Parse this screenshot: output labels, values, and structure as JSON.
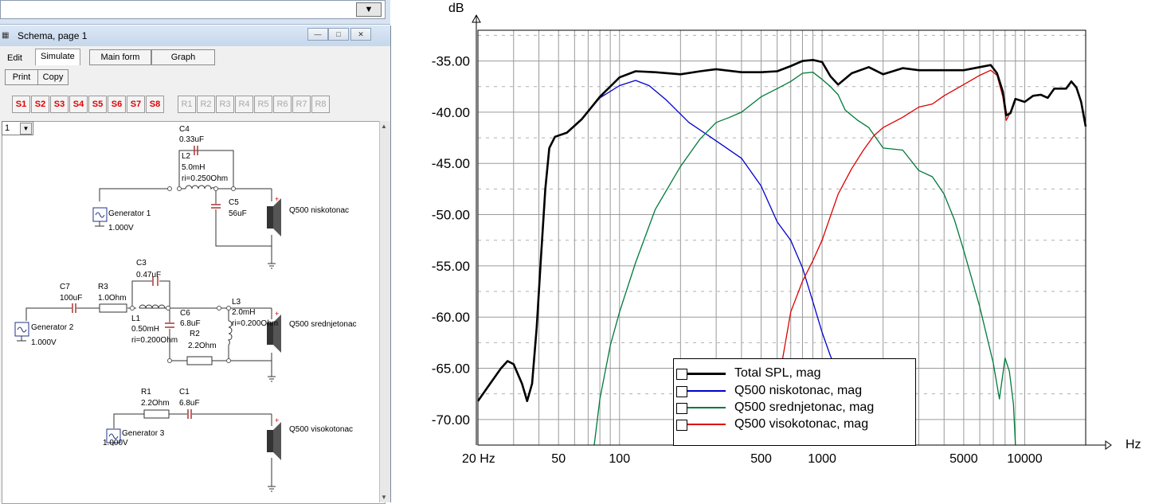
{
  "window": {
    "title": "Schema, page 1",
    "minimize_glyph": "—",
    "maximize_glyph": "□",
    "close_glyph": "✕"
  },
  "menu": {
    "tabs": [
      "Edit",
      "Simulate"
    ],
    "buttons": [
      "Main form",
      "Graph"
    ]
  },
  "toolbar": {
    "print_label": "Print",
    "copy_label": "Copy",
    "s_buttons": [
      "S1",
      "S2",
      "S3",
      "S4",
      "S5",
      "S6",
      "S7",
      "S8"
    ],
    "r_buttons": [
      "R1",
      "R2",
      "R3",
      "R4",
      "R5",
      "R6",
      "R7",
      "R8"
    ]
  },
  "page_select": {
    "value": "1"
  },
  "schematic": {
    "c4": {
      "name": "C4",
      "value": "0.33uF"
    },
    "l2": {
      "name": "L2",
      "value": "5.0mH",
      "ri": "ri=0.250Ohm"
    },
    "c5": {
      "name": "C5",
      "value": "56uF"
    },
    "gen1": {
      "name": "Generator 1",
      "voltage": "1.000V"
    },
    "spk1": "Q500 niskotonac",
    "c3": {
      "name": "C3",
      "value": "0.47uF"
    },
    "c7": {
      "name": "C7",
      "value": "100uF"
    },
    "r3": {
      "name": "R3",
      "value": "1.0Ohm"
    },
    "l1": {
      "name": "L1",
      "value": "0.50mH",
      "ri": "ri=0.200Ohm"
    },
    "c6": {
      "name": "C6",
      "value": "6.8uF"
    },
    "r2": {
      "name": "R2",
      "value": "2.2Ohm"
    },
    "l3": {
      "name": "L3",
      "value": "2.0mH",
      "ri": "ri=0.200Ohm"
    },
    "gen2": {
      "name": "Generator 2",
      "voltage": "1.000V"
    },
    "spk2": "Q500 srednjetonac",
    "r1": {
      "name": "R1",
      "value": "2.2Ohm"
    },
    "c1": {
      "name": "C1",
      "value": "6.8uF"
    },
    "gen3": {
      "name": "Generator 3",
      "voltage": "1.000V"
    },
    "spk3": "Q500 visokotonac"
  },
  "chart_data": {
    "type": "line",
    "ylabel": "dB",
    "xlabel": "Hz",
    "x_scale": "log",
    "xlim": [
      20,
      20000
    ],
    "ylim": [
      -72.5,
      -32
    ],
    "y_ticks": [
      "-35.00",
      "-40.00",
      "-45.00",
      "-50.00",
      "-55.00",
      "-60.00",
      "-65.00",
      "-70.00"
    ],
    "x_ticks": [
      "20 Hz",
      "50",
      "100",
      "500",
      "1000",
      "5000",
      "10000"
    ],
    "grid": true,
    "legend_position": "bottom-center",
    "series": [
      {
        "name": "Total SPL, mag",
        "color": "#000000",
        "points": [
          [
            20,
            -68.2
          ],
          [
            23,
            -66.5
          ],
          [
            26,
            -65.0
          ],
          [
            28,
            -64.3
          ],
          [
            30,
            -64.6
          ],
          [
            33,
            -66.5
          ],
          [
            35,
            -68.2
          ],
          [
            37,
            -66.5
          ],
          [
            39,
            -61
          ],
          [
            41,
            -54
          ],
          [
            43,
            -47.5
          ],
          [
            45,
            -43.5
          ],
          [
            48,
            -42.4
          ],
          [
            55,
            -42.0
          ],
          [
            65,
            -40.7
          ],
          [
            80,
            -38.5
          ],
          [
            100,
            -36.6
          ],
          [
            120,
            -36.0
          ],
          [
            150,
            -36.1
          ],
          [
            200,
            -36.3
          ],
          [
            250,
            -36.0
          ],
          [
            300,
            -35.8
          ],
          [
            400,
            -36.1
          ],
          [
            500,
            -36.1
          ],
          [
            600,
            -36.0
          ],
          [
            700,
            -35.5
          ],
          [
            800,
            -35.0
          ],
          [
            900,
            -34.9
          ],
          [
            1000,
            -35.1
          ],
          [
            1100,
            -36.5
          ],
          [
            1200,
            -37.3
          ],
          [
            1400,
            -36.2
          ],
          [
            1700,
            -35.6
          ],
          [
            2000,
            -36.3
          ],
          [
            2500,
            -35.7
          ],
          [
            3000,
            -35.9
          ],
          [
            4000,
            -35.9
          ],
          [
            5000,
            -35.9
          ],
          [
            6000,
            -35.6
          ],
          [
            6800,
            -35.4
          ],
          [
            7300,
            -36.2
          ],
          [
            7800,
            -38.0
          ],
          [
            8100,
            -40.3
          ],
          [
            8500,
            -40.1
          ],
          [
            9000,
            -38.7
          ],
          [
            10000,
            -39.0
          ],
          [
            11000,
            -38.4
          ],
          [
            12000,
            -38.3
          ],
          [
            13000,
            -38.6
          ],
          [
            14000,
            -37.7
          ],
          [
            15000,
            -37.7
          ],
          [
            16000,
            -37.7
          ],
          [
            17000,
            -37.0
          ],
          [
            18000,
            -37.6
          ],
          [
            19000,
            -39.0
          ],
          [
            20000,
            -41.4
          ]
        ]
      },
      {
        "name": "Q500 niskotonac, mag",
        "color": "#0000cc",
        "points": [
          [
            55,
            -42.0
          ],
          [
            65,
            -40.7
          ],
          [
            80,
            -38.6
          ],
          [
            100,
            -37.4
          ],
          [
            120,
            -36.9
          ],
          [
            140,
            -37.4
          ],
          [
            170,
            -38.8
          ],
          [
            220,
            -41.0
          ],
          [
            300,
            -42.8
          ],
          [
            400,
            -44.5
          ],
          [
            500,
            -47.2
          ],
          [
            600,
            -50.7
          ],
          [
            700,
            -52.5
          ],
          [
            800,
            -55.2
          ],
          [
            900,
            -58.5
          ],
          [
            1000,
            -61.5
          ],
          [
            1100,
            -63.8
          ],
          [
            1200,
            -65.5
          ],
          [
            1300,
            -64.5
          ],
          [
            1400,
            -66.5
          ]
        ]
      },
      {
        "name": "Q500 srednjetonac, mag",
        "color": "#007a3a",
        "points": [
          [
            75,
            -72.5
          ],
          [
            80,
            -68.0
          ],
          [
            90,
            -62.8
          ],
          [
            100,
            -59.5
          ],
          [
            120,
            -54.7
          ],
          [
            150,
            -49.5
          ],
          [
            200,
            -45.3
          ],
          [
            250,
            -42.6
          ],
          [
            300,
            -41.0
          ],
          [
            350,
            -40.5
          ],
          [
            400,
            -40.0
          ],
          [
            500,
            -38.5
          ],
          [
            600,
            -37.7
          ],
          [
            700,
            -37.0
          ],
          [
            800,
            -36.2
          ],
          [
            900,
            -36.1
          ],
          [
            1000,
            -36.8
          ],
          [
            1100,
            -37.5
          ],
          [
            1200,
            -38.3
          ],
          [
            1300,
            -39.8
          ],
          [
            1500,
            -40.8
          ],
          [
            1700,
            -41.5
          ],
          [
            2000,
            -43.5
          ],
          [
            2500,
            -43.7
          ],
          [
            3000,
            -45.7
          ],
          [
            3500,
            -46.3
          ],
          [
            4000,
            -48.0
          ],
          [
            4500,
            -50.5
          ],
          [
            5000,
            -53.5
          ],
          [
            6000,
            -59.0
          ],
          [
            7000,
            -64.5
          ],
          [
            7500,
            -68.0
          ],
          [
            8000,
            -64.0
          ],
          [
            8400,
            -65.3
          ],
          [
            8800,
            -68.5
          ],
          [
            9000,
            -72.5
          ]
        ]
      },
      {
        "name": "Q500 visokotonac, mag",
        "color": "#dd0000",
        "points": [
          [
            620,
            -65.5
          ],
          [
            700,
            -59.5
          ],
          [
            800,
            -56.5
          ],
          [
            900,
            -54.5
          ],
          [
            1000,
            -52.5
          ],
          [
            1200,
            -48.0
          ],
          [
            1400,
            -45.5
          ],
          [
            1600,
            -43.7
          ],
          [
            1800,
            -42.3
          ],
          [
            2000,
            -41.5
          ],
          [
            2500,
            -40.5
          ],
          [
            3000,
            -39.5
          ],
          [
            3500,
            -39.2
          ],
          [
            4000,
            -38.4
          ],
          [
            5000,
            -37.3
          ],
          [
            6000,
            -36.4
          ],
          [
            6800,
            -35.9
          ],
          [
            7300,
            -36.4
          ],
          [
            7800,
            -38.5
          ],
          [
            8100,
            -40.8
          ],
          [
            8500,
            -40.0
          ]
        ]
      }
    ]
  }
}
